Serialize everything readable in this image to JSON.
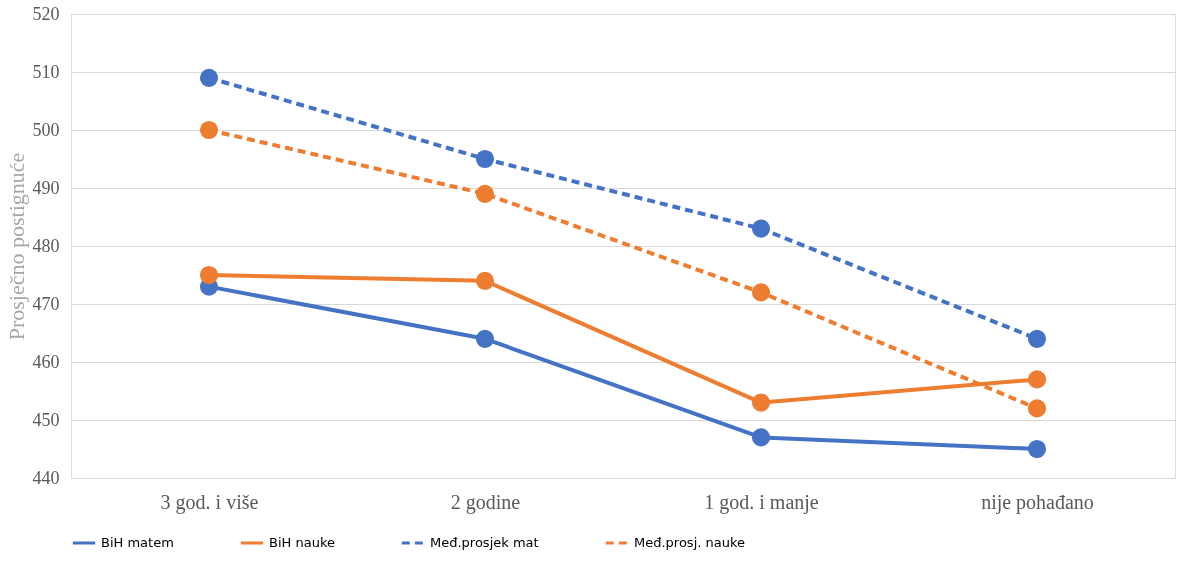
{
  "chart_data": {
    "type": "line",
    "ylabel": "Prosječno postignuće",
    "categories": [
      "3 god. i više",
      "2 godine",
      "1 god. i manje",
      "nije pohađano"
    ],
    "ylim": [
      440,
      520
    ],
    "yticks": [
      440,
      450,
      460,
      470,
      480,
      490,
      500,
      510,
      520
    ],
    "grid": "y",
    "legend": "bottom",
    "marker": "circle",
    "series": [
      {
        "name": "BiH matem",
        "color": "#4472c4",
        "line_style": "solid",
        "values": [
          473,
          464,
          447,
          445
        ]
      },
      {
        "name": "BiH nauke",
        "color": "#ed7d31",
        "line_style": "solid",
        "values": [
          475,
          474,
          453,
          457
        ]
      },
      {
        "name": "Međ.prosjek mat",
        "color": "#4472c4",
        "line_style": "dashed",
        "values": [
          509,
          495,
          483,
          464
        ]
      },
      {
        "name": "Međ.prosj. nauke",
        "color": "#ed7d31",
        "line_style": "dashed",
        "values": [
          500,
          489,
          472,
          452
        ]
      }
    ]
  }
}
